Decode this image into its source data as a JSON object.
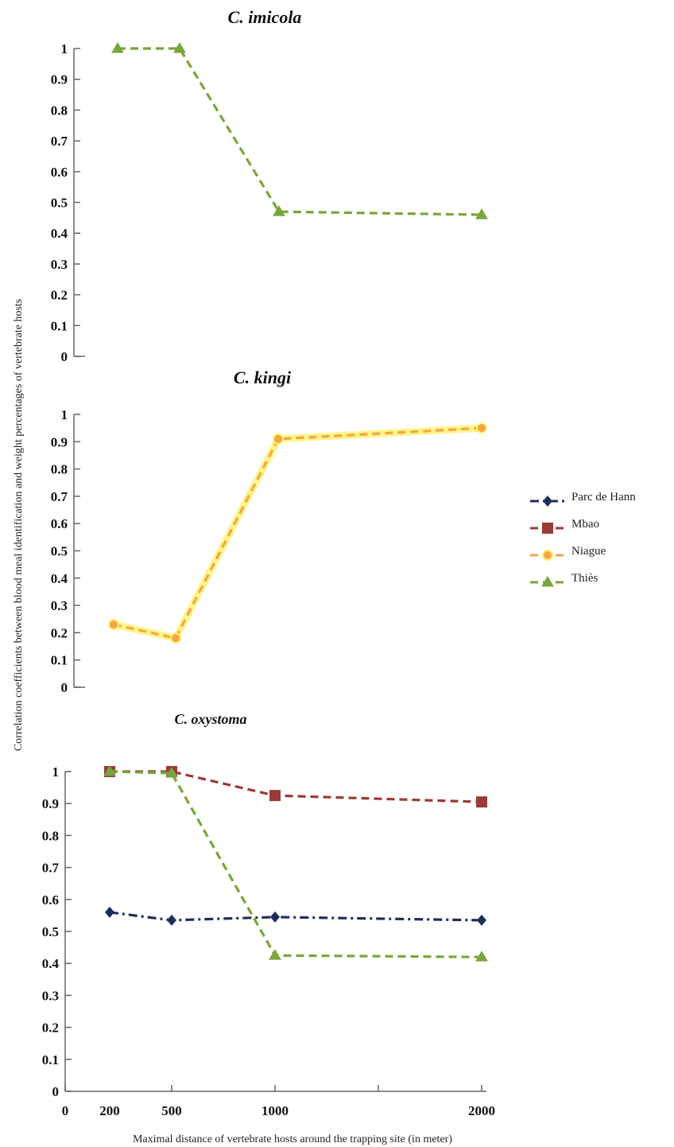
{
  "ylabel": "Correlation  coefficients  between blood meal identification and weight percentages of vertebrate hosts",
  "xlabel": "Maximal  distance  of  vertebrate  hosts around  the trapping site (in meter)",
  "x_tick_labels": [
    "0",
    "200",
    "500",
    "1000",
    "2000"
  ],
  "legend": {
    "placement": "right",
    "entries": [
      {
        "name": "Parc  de Hann",
        "color": "#1f2d5a",
        "marker": "diamond",
        "dash": "dot-dash"
      },
      {
        "name": "Mbao",
        "color": "#9b3b37",
        "marker": "square",
        "dash": "dash"
      },
      {
        "name": "Niague",
        "color": "#f2a54a",
        "marker": "circle",
        "dash": "dash"
      },
      {
        "name": "Thiès",
        "color": "#7aa53a",
        "marker": "triangle",
        "dash": "dash"
      }
    ]
  },
  "chart_data": [
    {
      "type": "line",
      "title": "C. imicola",
      "x": [
        200,
        500,
        1000,
        2000
      ],
      "ylim": [
        0,
        1
      ],
      "y_tick_labels": [
        "0",
        "0.1",
        "0.2",
        "0.3",
        "0.4",
        "0.5",
        "0.6",
        "0.7",
        "0.8",
        "0.9",
        "1"
      ],
      "series": [
        {
          "name": "Thiès",
          "values": [
            1.0,
            1.0,
            0.47,
            0.46
          ],
          "color": "#7aa53a",
          "marker": "triangle"
        }
      ]
    },
    {
      "type": "line",
      "title": "C. kingi",
      "x": [
        200,
        500,
        1000,
        2000
      ],
      "ylim": [
        0,
        1
      ],
      "y_tick_labels": [
        "0",
        "0.1",
        "0.2",
        "0.3",
        "0.4",
        "0.5",
        "0.6",
        "0.7",
        "0.8",
        "0.9",
        "1"
      ],
      "series": [
        {
          "name": "Niague",
          "values": [
            0.23,
            0.18,
            0.91,
            0.95
          ],
          "color": "#f2a54a",
          "marker": "circle"
        }
      ]
    },
    {
      "type": "line",
      "title": "C. oxystoma",
      "x": [
        200,
        500,
        1000,
        2000
      ],
      "xlim": [
        0,
        2000
      ],
      "ylim": [
        0,
        1
      ],
      "y_tick_labels": [
        "0",
        "0.1",
        "0.2",
        "0.3",
        "0.4",
        "0.5",
        "0.6",
        "0.7",
        "0.8",
        "0.9",
        "1"
      ],
      "series": [
        {
          "name": "Parc  de Hann",
          "values": [
            0.56,
            0.535,
            0.545,
            0.535
          ],
          "color": "#1f2d5a",
          "marker": "diamond"
        },
        {
          "name": "Mbao",
          "values": [
            1.0,
            1.0,
            0.925,
            0.905
          ],
          "color": "#9b3b37",
          "marker": "square"
        },
        {
          "name": "Thiès",
          "values": [
            1.0,
            0.995,
            0.425,
            0.42
          ],
          "color": "#7aa53a",
          "marker": "triangle"
        }
      ]
    }
  ]
}
